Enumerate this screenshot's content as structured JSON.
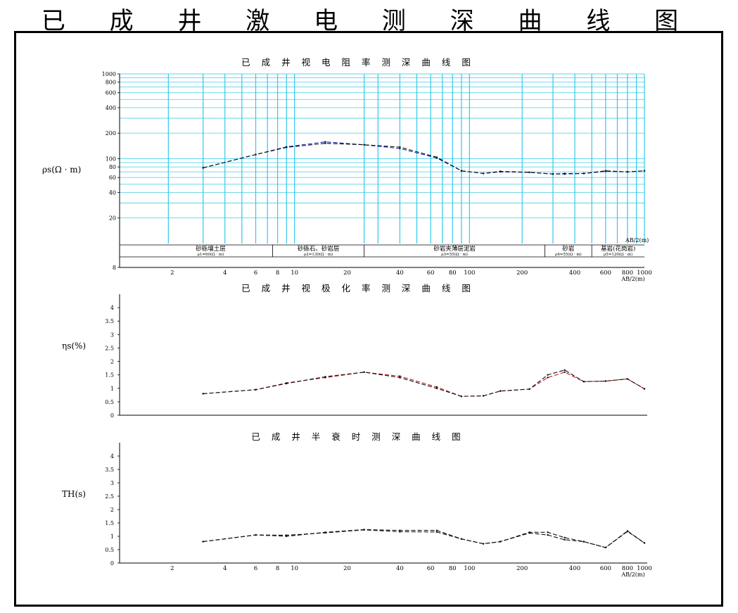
{
  "page_title": "已 成 井 激 电 测 深 曲 线 图",
  "chart_data": [
    {
      "type": "line",
      "title": "已 成 井 视 电 阻 率 测 深 曲 线 图",
      "ylabel": "ρs(Ω · m)",
      "xlabel": "AB/2(m)",
      "x_scale": "log",
      "y_scale": "log",
      "xlim": [
        1,
        1000
      ],
      "ylim": [
        10,
        1000
      ],
      "y_ticks": [
        "1000",
        "800",
        "600",
        "400",
        "200",
        "100",
        "80",
        "60",
        "40",
        "20",
        "8"
      ],
      "x_ticks": [
        "2",
        "4",
        "6",
        "8",
        "10",
        "20",
        "40",
        "60",
        "80",
        "100",
        "200",
        "400",
        "600",
        "800",
        "1000"
      ],
      "vertical_line_x": [
        1.9,
        3,
        4,
        5,
        6,
        7,
        8,
        9,
        10,
        25,
        30,
        40,
        50,
        60,
        70,
        80,
        90,
        100,
        200,
        300,
        400,
        500,
        600,
        700,
        800,
        900,
        1000
      ],
      "series": [
        {
          "color": "#1a1ab8",
          "dashed": true,
          "x": [
            3,
            6,
            9,
            15,
            25,
            40,
            65,
            90,
            120,
            150,
            220,
            300,
            350,
            450,
            600,
            800,
            1000
          ],
          "y": [
            78,
            112,
            138,
            158,
            146,
            132,
            102,
            72,
            67,
            70,
            69,
            66,
            66,
            67,
            71,
            70,
            72
          ]
        },
        {
          "color": "#111111",
          "dashed": true,
          "x": [
            3,
            6,
            9,
            15,
            25,
            40,
            65,
            90,
            120,
            150,
            220,
            300,
            350,
            450,
            600,
            800,
            1000
          ],
          "y": [
            78,
            112,
            136,
            152,
            146,
            137,
            104,
            72,
            67,
            71,
            69,
            66,
            67,
            67,
            72,
            70,
            72
          ]
        }
      ],
      "strata": [
        {
          "name": "砂砾壤土层",
          "sub": "ρ1=60(Ω · m)"
        },
        {
          "name": "砂砾石、砂岩层",
          "sub": "ρ2=130(Ω · m)"
        },
        {
          "name": "砂岩夹薄层泥岩",
          "sub": "ρ3=55(Ω · m)"
        },
        {
          "name": "砂岩",
          "sub": "ρ4=55(Ω · m)"
        },
        {
          "name": "基岩(花岗岩)",
          "sub": "ρ5=120(Ω · m)"
        }
      ]
    },
    {
      "type": "line",
      "title": "已 成 井 视 极 化 率 测 深 曲 线 图",
      "ylabel": "ηs(%)",
      "x_scale": "log",
      "xlim": [
        1,
        1000
      ],
      "ylim": [
        0,
        4.5
      ],
      "y_ticks": [
        "4",
        "3.5",
        "3",
        "2.5",
        "2",
        "1.5",
        "1",
        "0.5",
        "0"
      ],
      "series": [
        {
          "color": "#cc1a1a",
          "dashed": true,
          "x": [
            3,
            6,
            9,
            15,
            25,
            40,
            65,
            90,
            120,
            150,
            220,
            280,
            350,
            450,
            600,
            800,
            1000
          ],
          "y": [
            0.8,
            0.95,
            1.2,
            1.4,
            1.6,
            1.45,
            1.05,
            0.7,
            0.72,
            0.9,
            0.97,
            1.4,
            1.6,
            1.25,
            1.27,
            1.35,
            0.98
          ]
        },
        {
          "color": "#111111",
          "dashed": true,
          "x": [
            3,
            6,
            9,
            15,
            25,
            40,
            65,
            90,
            120,
            150,
            220,
            280,
            350,
            450,
            600,
            800,
            1000
          ],
          "y": [
            0.8,
            0.95,
            1.18,
            1.43,
            1.6,
            1.4,
            1.0,
            0.7,
            0.72,
            0.9,
            0.97,
            1.5,
            1.68,
            1.25,
            1.27,
            1.35,
            0.98
          ]
        }
      ]
    },
    {
      "type": "line",
      "title": "已 成 井 半 衰 时 测 深 曲 线 图",
      "ylabel": "TH(s)",
      "xlabel": "AB/2(m)",
      "x_scale": "log",
      "xlim": [
        1,
        1000
      ],
      "ylim": [
        0,
        4.5
      ],
      "y_ticks": [
        "4",
        "3.5",
        "3",
        "2.5",
        "2",
        "1.5",
        "1",
        "0.5",
        "0"
      ],
      "x_ticks": [
        "2",
        "4",
        "6",
        "8",
        "10",
        "20",
        "40",
        "60",
        "80",
        "100",
        "200",
        "400",
        "600",
        "800",
        "1000"
      ],
      "series": [
        {
          "color": "#111111",
          "dashed": true,
          "x": [
            3,
            6,
            9,
            15,
            25,
            40,
            65,
            90,
            120,
            150,
            220,
            280,
            350,
            450,
            600,
            800,
            1000
          ],
          "y": [
            0.8,
            1.05,
            1.0,
            1.15,
            1.25,
            1.22,
            1.22,
            0.9,
            0.72,
            0.8,
            1.15,
            1.15,
            0.95,
            0.8,
            0.58,
            1.2,
            0.75
          ]
        },
        {
          "color": "#111111",
          "dashed": true,
          "x": [
            3,
            6,
            9,
            15,
            25,
            40,
            65,
            90,
            120,
            150,
            220,
            280,
            350,
            450,
            600,
            800,
            1000
          ],
          "y": [
            0.8,
            1.05,
            1.04,
            1.13,
            1.24,
            1.17,
            1.16,
            0.9,
            0.72,
            0.8,
            1.12,
            1.05,
            0.87,
            0.8,
            0.58,
            1.18,
            0.75
          ]
        }
      ]
    }
  ]
}
